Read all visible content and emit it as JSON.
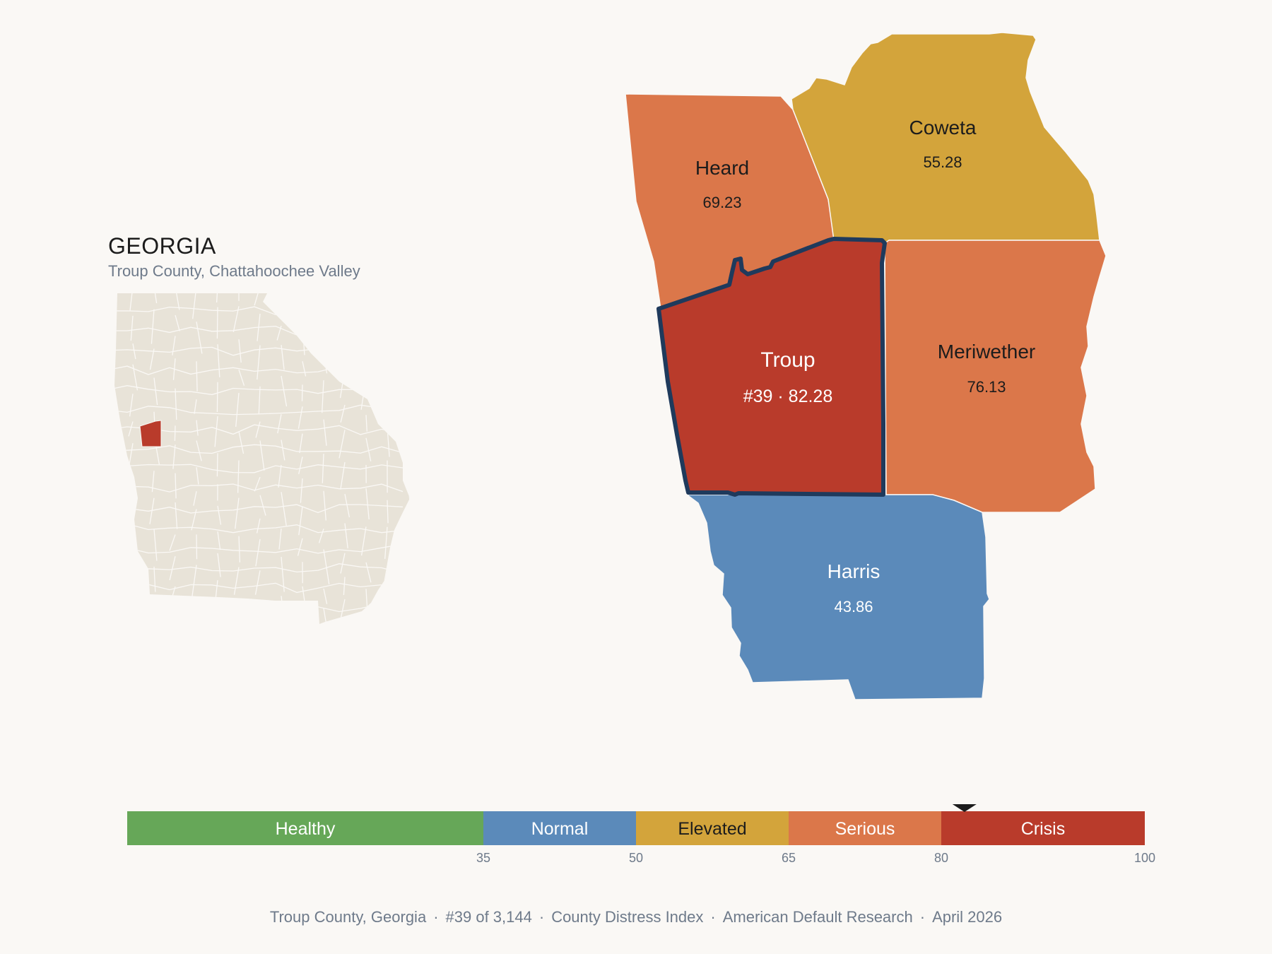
{
  "state": {
    "title": "GEORGIA",
    "subtitle": "Troup County, Chattahoochee Valley"
  },
  "counties": [
    {
      "name": "Heard",
      "value": "69.23",
      "category": "Serious",
      "color": "#db774a"
    },
    {
      "name": "Coweta",
      "value": "55.28",
      "category": "Elevated",
      "color": "#d3a43b"
    },
    {
      "name": "Troup",
      "value": "#39 · 82.28",
      "category": "Crisis",
      "color": "#b93b2b",
      "selected": true
    },
    {
      "name": "Meriwether",
      "value": "76.13",
      "category": "Serious",
      "color": "#db774a"
    },
    {
      "name": "Harris",
      "value": "43.86",
      "category": "Normal",
      "color": "#5b8aba"
    }
  ],
  "scale": {
    "segments": [
      {
        "label": "Healthy",
        "from": 0,
        "to": 35,
        "color": "#66a758"
      },
      {
        "label": "Normal",
        "from": 35,
        "to": 50,
        "color": "#5b8aba"
      },
      {
        "label": "Elevated",
        "from": 50,
        "to": 65,
        "color": "#d3a43b"
      },
      {
        "label": "Serious",
        "from": 65,
        "to": 80,
        "color": "#db774a"
      },
      {
        "label": "Crisis",
        "from": 80,
        "to": 100,
        "color": "#b93b2b"
      }
    ],
    "ticks": [
      "35",
      "50",
      "65",
      "80",
      "100"
    ],
    "marker_value": 82.28
  },
  "footer": {
    "parts": [
      "Troup County, Georgia",
      "#39 of 3,144",
      "County Distress Index",
      "American Default Research",
      "April 2026"
    ]
  },
  "colors": {
    "highlight_outline": "#1f3a5c",
    "state_fill": "#e8e3d8",
    "state_highlight": "#b93b2b"
  }
}
